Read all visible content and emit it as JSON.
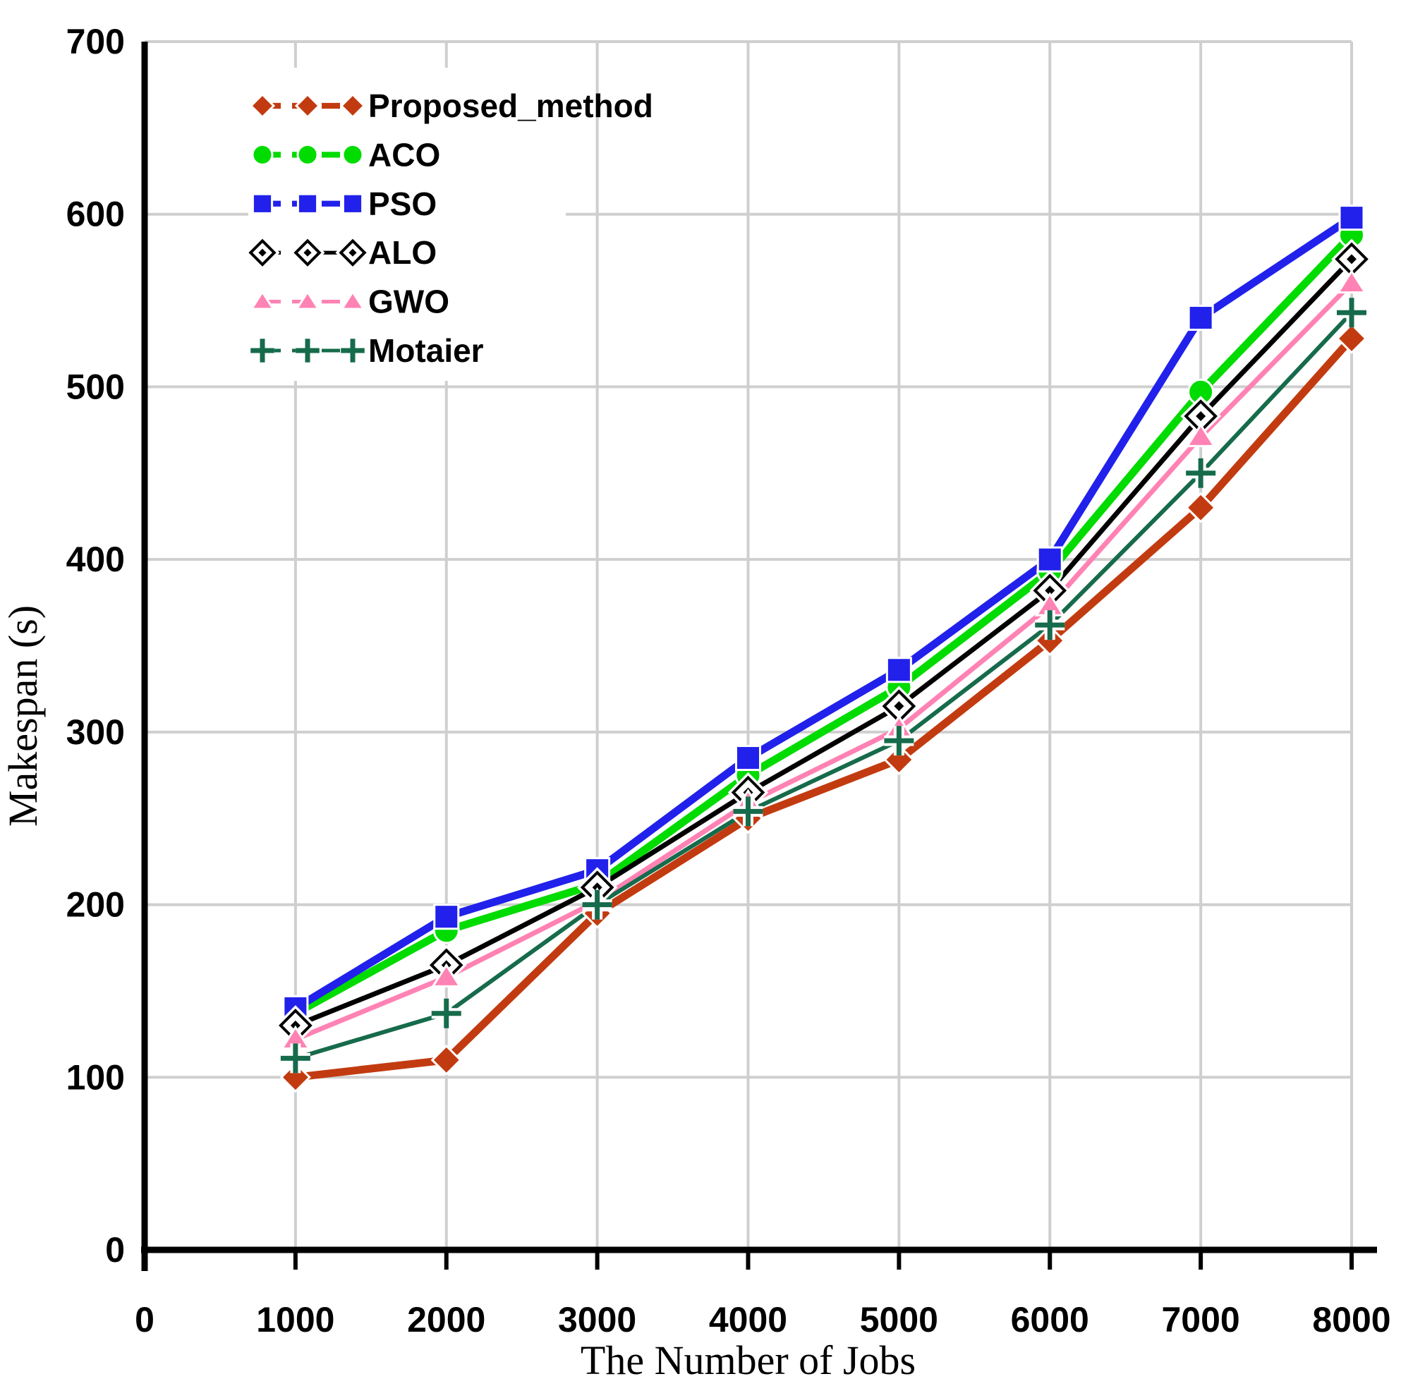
{
  "figure": {
    "background": "#FFFFFF"
  },
  "chart_data": {
    "type": "line",
    "title": "",
    "xlabel": "The Number of Jobs",
    "ylabel": "Makespan (s)",
    "x": [
      1000,
      2000,
      3000,
      4000,
      5000,
      6000,
      7000,
      8000
    ],
    "x_ticks": [
      0,
      1000,
      2000,
      3000,
      4000,
      5000,
      6000,
      7000,
      8000
    ],
    "y_ticks": [
      0,
      100,
      200,
      300,
      400,
      500,
      600,
      700
    ],
    "xlim": [
      0,
      8000
    ],
    "ylim": [
      0,
      700
    ],
    "grid": true,
    "grid_color": "#CFCFCF",
    "axis_color": "#000000",
    "legend_position": "top-left-inside",
    "series": [
      {
        "name": "Proposed_method",
        "color": "#C23B10",
        "marker": "diamond",
        "line_width": 11,
        "values": [
          100,
          110,
          195,
          250,
          284,
          353,
          430,
          528
        ]
      },
      {
        "name": "ACO",
        "color": "#00DB00",
        "marker": "circle",
        "line_width": 11,
        "values": [
          137,
          185,
          212,
          275,
          326,
          393,
          497,
          588
        ]
      },
      {
        "name": "PSO",
        "color": "#2121EB",
        "marker": "square",
        "line_width": 11,
        "values": [
          140,
          193,
          220,
          285,
          336,
          400,
          540,
          598
        ]
      },
      {
        "name": "ALO",
        "color": "#000000",
        "marker": "open-diamond",
        "line_width": 7,
        "values": [
          130,
          165,
          210,
          265,
          315,
          382,
          483,
          574
        ]
      },
      {
        "name": "GWO",
        "color": "#FF82B4",
        "marker": "triangle",
        "line_width": 7,
        "values": [
          122,
          158,
          202,
          259,
          302,
          373,
          471,
          560
        ]
      },
      {
        "name": "Motaier",
        "color": "#166B4B",
        "marker": "plus",
        "line_width": 6,
        "values": [
          111,
          137,
          200,
          254,
          295,
          362,
          450,
          543
        ]
      }
    ]
  }
}
